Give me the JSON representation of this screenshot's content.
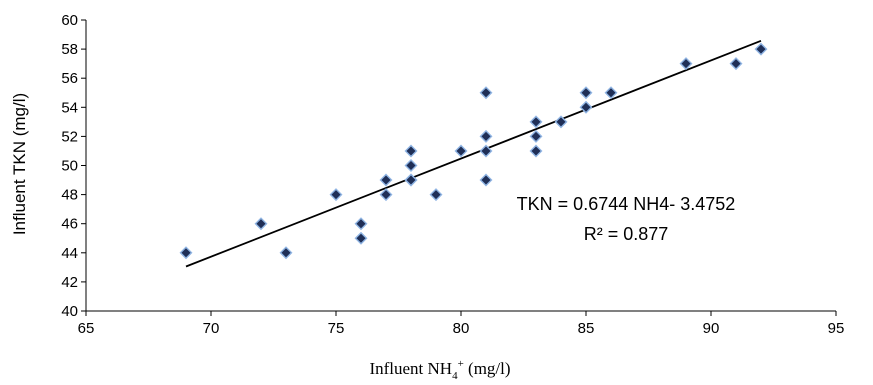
{
  "chart_data": {
    "type": "scatter",
    "title": "",
    "xlabel": {
      "base": "Influent NH",
      "sub": "4",
      "sup": "+",
      "tail": " (mg/l)"
    },
    "ylabel": "Influent TKN (mg/l)",
    "xlim": [
      65,
      95
    ],
    "ylim": [
      40,
      60
    ],
    "xticks": [
      65,
      70,
      75,
      80,
      85,
      90,
      95
    ],
    "yticks": [
      40,
      42,
      44,
      46,
      48,
      50,
      52,
      54,
      56,
      58,
      60
    ],
    "grid": false,
    "legend": "none",
    "marker_color": "#1f2f57",
    "marker_edge_color": "#8fb4e3",
    "series": [
      {
        "x": [
          69,
          72,
          73,
          75,
          76,
          76,
          77,
          77,
          78,
          78,
          78,
          78,
          79,
          80,
          81,
          81,
          81,
          81,
          83,
          83,
          83,
          84,
          85,
          85,
          86,
          89,
          91,
          92
        ],
        "y": [
          44,
          46,
          44,
          48,
          46,
          45,
          49,
          48,
          51,
          50,
          49,
          49,
          48,
          51,
          55,
          52,
          51,
          49,
          53,
          52,
          51,
          53,
          55,
          54,
          55,
          57,
          57,
          58
        ]
      }
    ],
    "trendline": {
      "type": "linear",
      "slope": 0.6744,
      "intercept": -3.4752,
      "x_range": [
        69,
        92
      ]
    },
    "annotations": {
      "equation": "TKN = 0.6744 NH4- 3.4752",
      "r_squared": "R² = 0.877"
    }
  }
}
